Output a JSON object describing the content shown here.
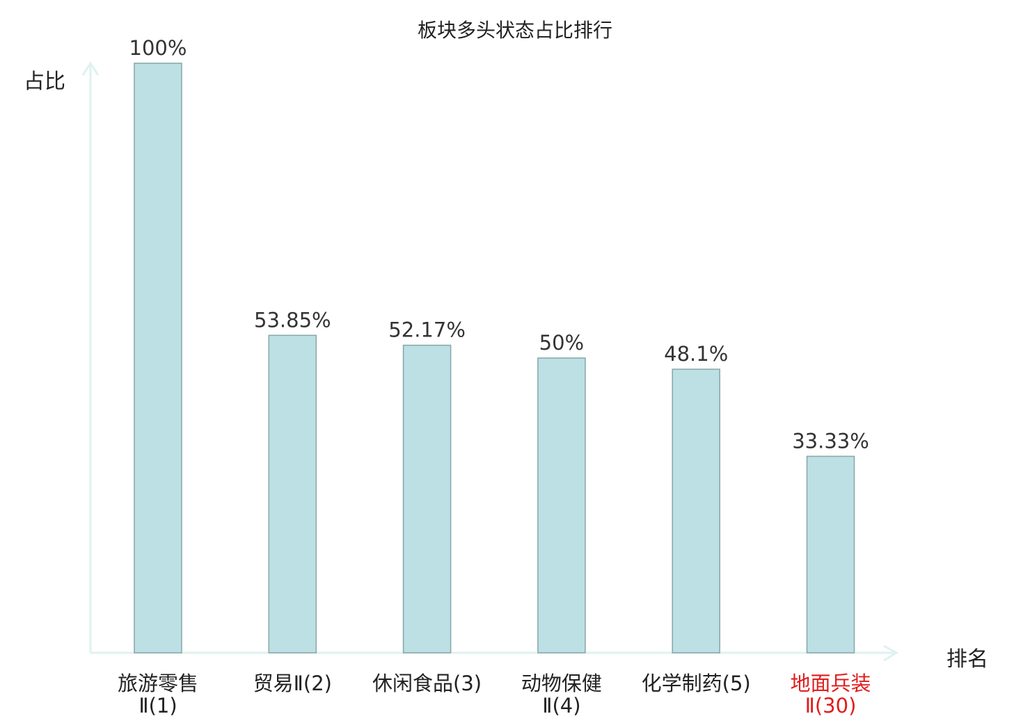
{
  "chart_data": {
    "type": "bar",
    "title": "板块多头状态占比排行",
    "ylabel": "占比",
    "xlabel": "排名",
    "categories": [
      [
        "旅游零售",
        "Ⅱ(1)"
      ],
      [
        "贸易Ⅱ(2)"
      ],
      [
        "休闲食品(3)"
      ],
      [
        "动物保健",
        "Ⅱ(4)"
      ],
      [
        "化学制药(5)"
      ],
      [
        "地面兵装",
        "Ⅱ(30)"
      ]
    ],
    "values": [
      100,
      53.85,
      52.17,
      50,
      48.1,
      33.33
    ],
    "value_labels": [
      "100%",
      "53.85%",
      "52.17%",
      "50%",
      "48.1%",
      "33.33%"
    ],
    "highlight_index": 5,
    "ylim": [
      0,
      100
    ],
    "grid": false,
    "legend": "none"
  },
  "colors": {
    "bar_fill": "#bce0e3",
    "bar_stroke": "#86a6a9",
    "axis": "#dff2ef",
    "text": "#222222",
    "value_text": "#333333",
    "highlight": "#e11c1c"
  }
}
